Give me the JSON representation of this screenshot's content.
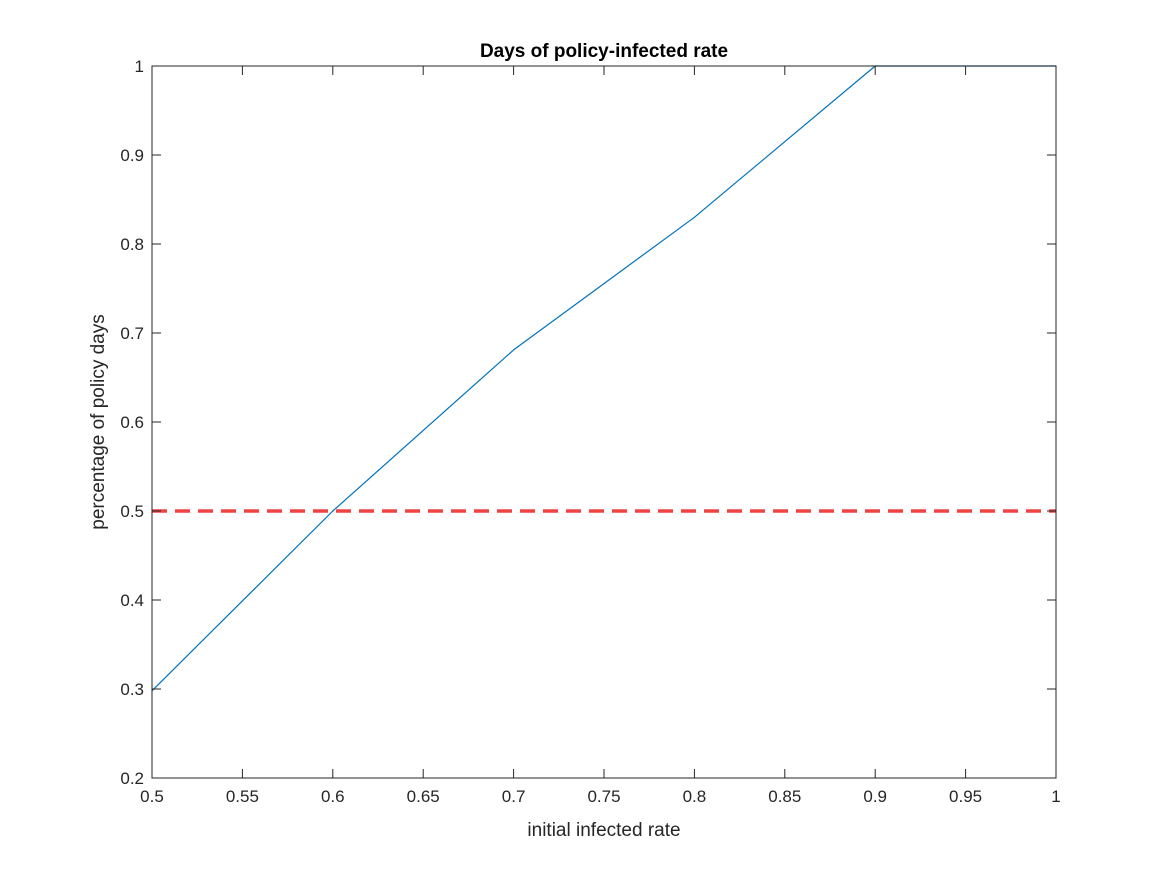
{
  "chart_data": {
    "type": "line",
    "title": "Days of policy-infected rate",
    "xlabel": "initial infected rate",
    "ylabel": "percentage of policy days",
    "xlim": [
      0.5,
      1.0
    ],
    "ylim": [
      0.2,
      1.0
    ],
    "x_ticks": [
      0.5,
      0.55,
      0.6,
      0.65,
      0.7,
      0.75,
      0.8,
      0.85,
      0.9,
      0.95,
      1.0
    ],
    "x_tick_labels": [
      "0.5",
      "0.55",
      "0.6",
      "0.65",
      "0.7",
      "0.75",
      "0.8",
      "0.85",
      "0.9",
      "0.95",
      "1"
    ],
    "y_ticks": [
      0.2,
      0.3,
      0.4,
      0.5,
      0.6,
      0.7,
      0.8,
      0.9,
      1.0
    ],
    "y_tick_labels": [
      "0.2",
      "0.3",
      "0.4",
      "0.5",
      "0.6",
      "0.7",
      "0.8",
      "0.9",
      "1"
    ],
    "grid": false,
    "series": [
      {
        "x": [
          0.5,
          0.6,
          0.7,
          0.8,
          0.9,
          1.0
        ],
        "y": [
          0.298,
          0.5,
          0.681,
          0.83,
          1.0,
          1.0
        ],
        "color": "#0072BD",
        "style": "solid"
      }
    ],
    "reference_lines": [
      {
        "orientation": "horizontal",
        "y": 0.5,
        "color": "#EE4444",
        "style": "dashed"
      }
    ]
  }
}
